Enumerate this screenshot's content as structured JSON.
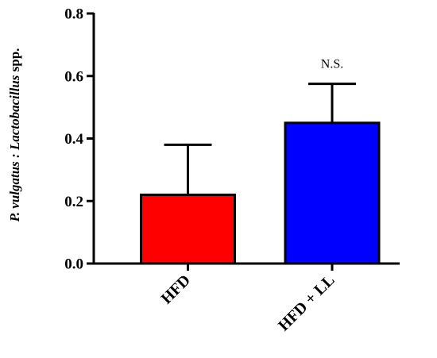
{
  "chart_data": {
    "type": "bar",
    "categories": [
      "HFD",
      "HFD + LL"
    ],
    "values": [
      0.22,
      0.45
    ],
    "error_upper": [
      0.38,
      0.575
    ],
    "colors": [
      "#ff0000",
      "#0000ff"
    ],
    "ylabel_parts": {
      "italic_1": "P. vulgatus : Lactobacillus",
      "normal_1": " spp."
    },
    "ylim": [
      0,
      0.8
    ],
    "yticks": [
      "0.0",
      "0.2",
      "0.4",
      "0.6",
      "0.8"
    ],
    "annotations": [
      {
        "text": "N.S.",
        "category": "HFD + LL"
      }
    ]
  }
}
